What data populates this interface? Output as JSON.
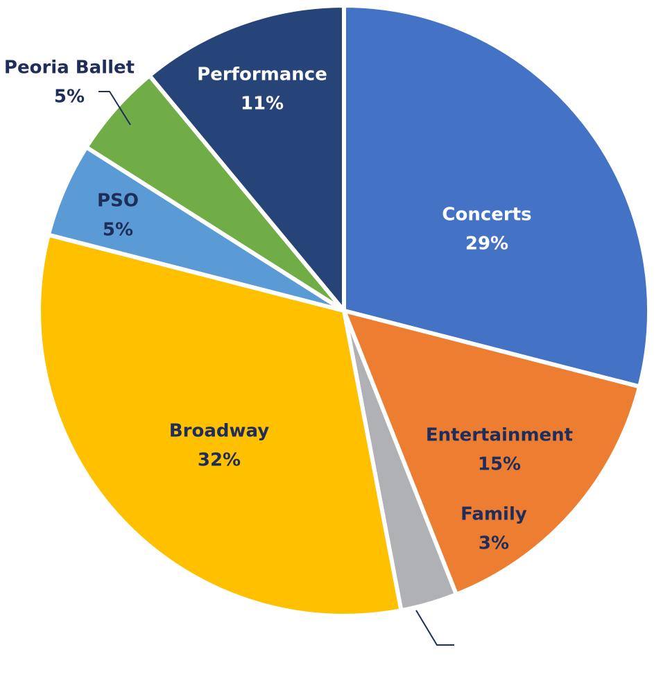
{
  "chart_data": {
    "type": "pie",
    "categories": [
      "Concerts",
      "Entertainment",
      "Family",
      "Broadway",
      "PSO",
      "Peoria Ballet",
      "Performance"
    ],
    "values": [
      29,
      15,
      3,
      32,
      5,
      5,
      11
    ],
    "value_labels": [
      "29%",
      "15%",
      "3%",
      "32%",
      "5%",
      "5%",
      "11%"
    ],
    "colors": [
      "#4472c4",
      "#ed7d31",
      "#b0b1b5",
      "#ffc000",
      "#5b9bd5",
      "#70ad47",
      "#264478"
    ]
  }
}
